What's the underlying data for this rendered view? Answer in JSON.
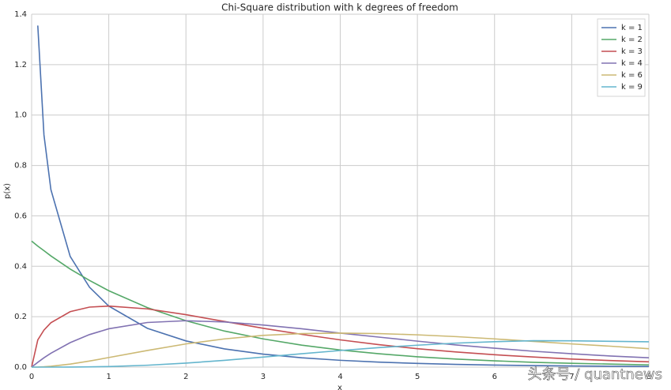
{
  "chart_data": {
    "type": "line",
    "title": "Chi-Square distribution with k degrees of freedom",
    "xlabel": "x",
    "ylabel": "p(x)",
    "x": [
      0,
      0.08,
      0.16,
      0.25,
      0.5,
      0.75,
      1,
      1.5,
      2,
      2.5,
      3,
      3.5,
      4,
      4.5,
      5,
      5.5,
      6,
      6.5,
      7,
      7.5,
      8
    ],
    "series": [
      {
        "name": "k = 1",
        "color": "#4c72b0",
        "values": [
          null,
          1.355,
          0.921,
          0.704,
          0.439,
          0.317,
          0.242,
          0.154,
          0.104,
          0.0723,
          0.0514,
          0.0371,
          0.027,
          0.0198,
          0.0146,
          0.0109,
          0.0081,
          0.0061,
          0.0046,
          0.0034,
          0.0026
        ]
      },
      {
        "name": "k = 2",
        "color": "#55a868",
        "values": [
          0.5,
          0.48,
          0.462,
          0.441,
          0.389,
          0.344,
          0.303,
          0.236,
          0.184,
          0.143,
          0.112,
          0.087,
          0.068,
          0.053,
          0.041,
          0.032,
          0.025,
          0.019,
          0.015,
          0.012,
          0.009
        ]
      },
      {
        "name": "k = 3",
        "color": "#c44e52",
        "values": [
          0,
          0.108,
          0.147,
          0.176,
          0.22,
          0.238,
          0.242,
          0.231,
          0.208,
          0.181,
          0.154,
          0.13,
          0.108,
          0.089,
          0.073,
          0.06,
          0.049,
          0.04,
          0.032,
          0.026,
          0.021
        ]
      },
      {
        "name": "k = 4",
        "color": "#8172b2",
        "values": [
          0,
          0.019,
          0.037,
          0.055,
          0.097,
          0.129,
          0.152,
          0.177,
          0.184,
          0.179,
          0.167,
          0.152,
          0.135,
          0.119,
          0.103,
          0.088,
          0.075,
          0.063,
          0.053,
          0.044,
          0.037
        ]
      },
      {
        "name": "k = 6",
        "color": "#ccb974",
        "values": [
          0,
          0.0004,
          0.0015,
          0.0034,
          0.012,
          0.024,
          0.038,
          0.066,
          0.092,
          0.112,
          0.126,
          0.133,
          0.135,
          0.133,
          0.128,
          0.121,
          0.112,
          0.102,
          0.092,
          0.083,
          0.073
        ]
      },
      {
        "name": "k = 9",
        "color": "#64b5cd",
        "values": [
          0,
          0,
          0,
          3e-05,
          0.0003,
          0.001,
          0.0023,
          0.0074,
          0.0158,
          0.0269,
          0.0396,
          0.0531,
          0.0658,
          0.0772,
          0.0869,
          0.0951,
          0.1008,
          0.1046,
          0.1042,
          0.1025,
          0.1005
        ]
      }
    ],
    "xlim": [
      0,
      8
    ],
    "ylim": [
      0,
      1.4
    ],
    "xticks": [
      0,
      1,
      2,
      3,
      4,
      5,
      6,
      7,
      8
    ],
    "yticks": [
      {
        "value": 0,
        "label": "0.0"
      },
      0.2,
      0.4,
      0.6,
      0.8,
      {
        "value": 1,
        "label": "1.0"
      },
      1.2,
      1.4
    ],
    "grid": true,
    "legend": "upper right"
  },
  "watermark": "头条号 / quantnews"
}
